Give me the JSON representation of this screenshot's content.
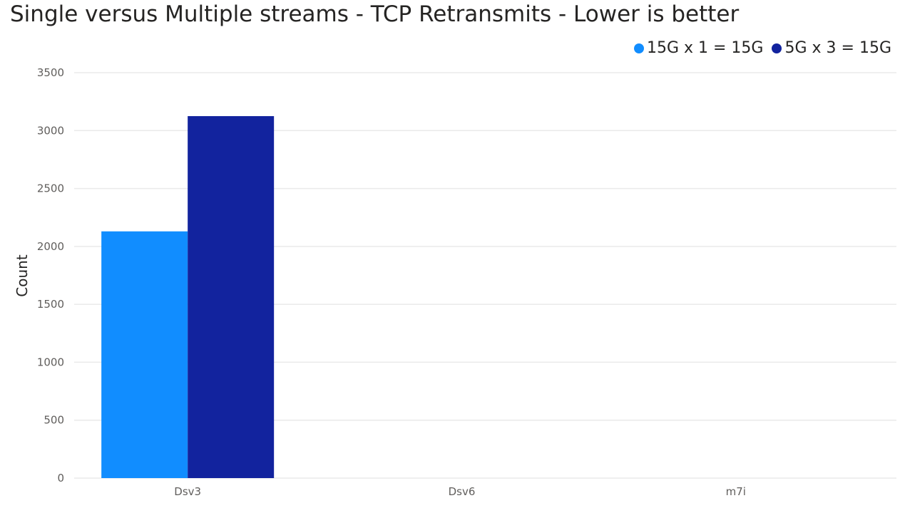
{
  "chart_data": {
    "type": "bar",
    "title": "Single versus Multiple streams - TCP Retransmits - Lower is better",
    "xlabel": "",
    "ylabel": "Count",
    "categories": [
      "Dsv3",
      "Dsv6",
      "m7i"
    ],
    "series": [
      {
        "name": "15G x 1 = 15G",
        "color": "#118dff",
        "values": [
          2130,
          0,
          0
        ]
      },
      {
        "name": "5G x 3 = 15G",
        "color": "#12239e",
        "values": [
          3125,
          0,
          0
        ]
      }
    ],
    "ylim": [
      0,
      3500
    ],
    "yticks": [
      0,
      500,
      1000,
      1500,
      2000,
      2500,
      3000,
      3500
    ],
    "grid": true,
    "legend": "top-right"
  }
}
